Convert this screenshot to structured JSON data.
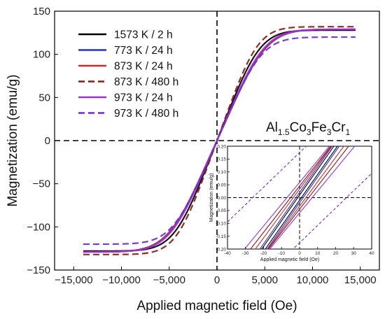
{
  "chart_data": [
    {
      "type": "line",
      "xlabel": "Applied magnetic field (Oe)",
      "ylabel": "Magnetization (emu/g)",
      "xlim": [
        -17000,
        17000
      ],
      "ylim": [
        -150,
        150
      ],
      "x_ticks": [
        -15000,
        -10000,
        -5000,
        0,
        5000,
        10000,
        15000
      ],
      "x_tick_labels": [
        "−15,000",
        "−10,000",
        "−5,000",
        "0",
        "5,000",
        "10,000",
        "15,000"
      ],
      "y_ticks": [
        -150,
        -100,
        -50,
        0,
        50,
        100,
        150
      ],
      "y_tick_labels": [
        "−150",
        "−100",
        "−50",
        "0",
        "50",
        "100",
        "150"
      ],
      "annotation": {
        "base": "Al",
        "sub1": "1.5",
        "mid1": "Co",
        "sub2": "3",
        "mid2": "Fe",
        "sub3": "3",
        "mid3": "Cr",
        "sub4": "1"
      },
      "legend_position": "top-left",
      "series": [
        {
          "name": "1573 K / 2 h",
          "color": "#000000",
          "dash": "solid",
          "ms": 128,
          "knee": 7800,
          "hc": 0,
          "x_min": -14000,
          "x_max": 14500
        },
        {
          "name": "773 K / 24 h",
          "color": "#1f2fd6",
          "dash": "solid",
          "ms": 129,
          "knee": 8900,
          "hc": 0,
          "x_min": -14000,
          "x_max": 14500
        },
        {
          "name": "873 K / 24 h",
          "color": "#d42a2a",
          "dash": "solid",
          "ms": 129,
          "knee": 8800,
          "hc": 0,
          "x_min": -14000,
          "x_max": 14500
        },
        {
          "name": "873 K / 480 h",
          "color": "#8b1a10",
          "dash": "dashed",
          "ms": 132,
          "knee": 7400,
          "hc": 0,
          "x_min": -14000,
          "x_max": 14500
        },
        {
          "name": "973 K / 24 h",
          "color": "#9b30e0",
          "dash": "solid",
          "ms": 129,
          "knee": 8600,
          "hc": 0,
          "x_min": -14000,
          "x_max": 14500
        },
        {
          "name": "973 K / 480 h",
          "color": "#6a2cd8",
          "dash": "dashed",
          "ms": 120,
          "knee": 8200,
          "hc": 0,
          "x_min": -14000,
          "x_max": 14500
        }
      ]
    },
    {
      "type": "line",
      "xlabel": "Applied magnetic field (Oe)",
      "ylabel": "Magnetization (emu/g)",
      "xlim": [
        -40,
        40
      ],
      "ylim": [
        -0.2,
        0.2
      ],
      "x_ticks": [
        -40,
        -30,
        -20,
        -10,
        0,
        10,
        20,
        30,
        40
      ],
      "x_tick_labels": [
        "-40",
        "-30",
        "-20",
        "-10",
        "0",
        "10",
        "20",
        "30",
        "40"
      ],
      "y_ticks": [
        -0.2,
        -0.15,
        -0.1,
        -0.05,
        0.0,
        0.05,
        0.1,
        0.15,
        0.2
      ],
      "y_tick_labels": [
        "-0.20",
        "-0.15",
        "-0.10",
        "-0.05",
        "0.00",
        "0.05",
        "0.10",
        "0.15",
        "0.20"
      ],
      "loops": [
        {
          "color": "#000000",
          "dash": "solid",
          "hc": 1.0,
          "slope": 0.04
        },
        {
          "color": "#1f2fd6",
          "dash": "solid",
          "hc": 2.0,
          "slope": 0.04
        },
        {
          "color": "#d42a2a",
          "dash": "solid",
          "hc": 3.5,
          "slope": 0.038
        },
        {
          "color": "#8b1a10",
          "dash": "solid",
          "hc": 5.0,
          "slope": 0.036
        },
        {
          "color": "#9b30e0",
          "dash": "solid",
          "hc": 7.0,
          "slope": 0.034
        },
        {
          "color": "#6a2cd8",
          "dash": "dashed",
          "hc": 26.0,
          "slope": 0.027
        }
      ]
    }
  ]
}
